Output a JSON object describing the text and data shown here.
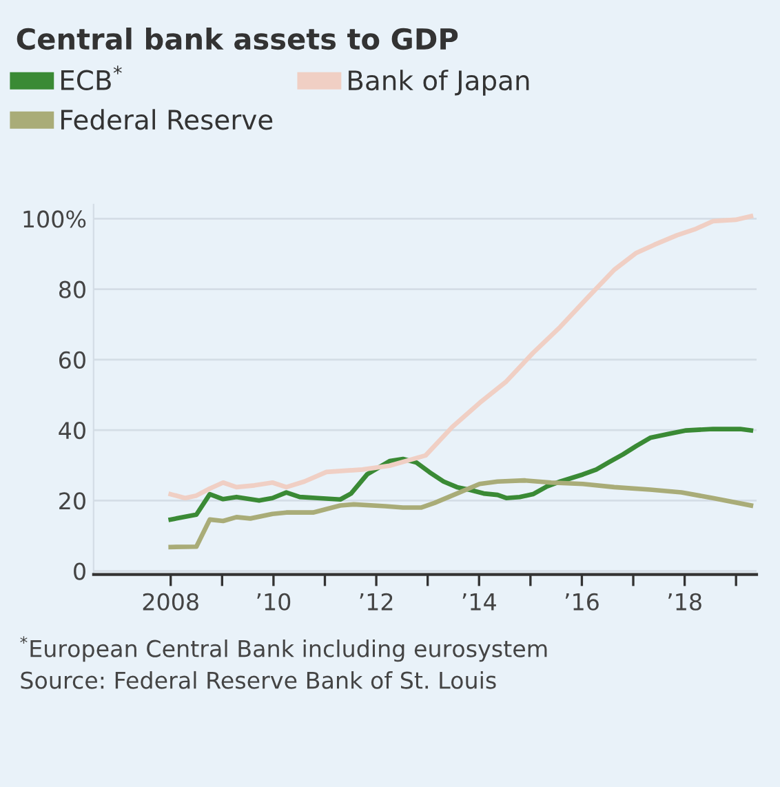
{
  "chart_data": {
    "type": "line",
    "title": "Central bank assets to GDP",
    "legend": "top left",
    "grid": "y",
    "marker": "none",
    "line_style": "solid",
    "series": [
      {
        "name": "ECB$^{*}$",
        "color": "#3a8a35",
        "x": [
          2008.0,
          2008.5,
          2008.76,
          2009.02,
          2009.28,
          2009.72,
          2009.98,
          2010.25,
          2010.51,
          2010.86,
          2011.3,
          2011.51,
          2011.82,
          2012.26,
          2012.52,
          2012.78,
          2013.04,
          2013.31,
          2013.57,
          2013.83,
          2014.09,
          2014.36,
          2014.53,
          2014.79,
          2015.05,
          2015.32,
          2015.58,
          2016.02,
          2016.28,
          2016.54,
          2016.8,
          2017.06,
          2017.33,
          2017.68,
          2018.03,
          2018.55,
          2019.08,
          2019.29
        ],
        "values": [
          14.6,
          16,
          21.8,
          20.4,
          21,
          20,
          20.7,
          22.3,
          21,
          20.7,
          20.3,
          22,
          27.4,
          31.2,
          31.8,
          30.8,
          28,
          25.4,
          23.8,
          23,
          22,
          21.6,
          20.7,
          21,
          21.8,
          24,
          25.4,
          27.4,
          28.8,
          31,
          33.1,
          35.5,
          37.8,
          38.9,
          39.9,
          40.3,
          40.3,
          39.9
        ]
      },
      {
        "name": "Federal Reserve",
        "color": "#a9ac78",
        "x": [
          2008.0,
          2008.5,
          2008.76,
          2009.02,
          2009.28,
          2009.55,
          2009.98,
          2010.25,
          2010.77,
          2011.3,
          2011.56,
          2012.17,
          2012.52,
          2012.87,
          2013.13,
          2013.57,
          2014.01,
          2014.36,
          2014.88,
          2015.4,
          2016.02,
          2016.63,
          2017.33,
          2017.94,
          2018.55,
          2019.29
        ],
        "values": [
          6.8,
          6.9,
          14.6,
          14.2,
          15.3,
          14.9,
          16.2,
          16.6,
          16.6,
          18.6,
          18.9,
          18.4,
          18,
          18,
          19.3,
          22,
          24.7,
          25.4,
          25.7,
          25.1,
          24.7,
          23.8,
          23.1,
          22.3,
          20.7,
          18.6
        ]
      },
      {
        "name": "Bank of Japan",
        "color": "#f0cfc4",
        "x": [
          2008.0,
          2008.28,
          2008.5,
          2008.76,
          2009.02,
          2009.28,
          2009.63,
          2009.98,
          2010.25,
          2010.6,
          2011.03,
          2011.73,
          2012.26,
          2012.96,
          2013.48,
          2014.01,
          2014.53,
          2015.05,
          2015.58,
          2016.1,
          2016.63,
          2017.06,
          2017.41,
          2017.85,
          2018.2,
          2018.55,
          2018.99,
          2019.29
        ],
        "values": [
          21.8,
          20.7,
          21.4,
          23.4,
          25.1,
          23.8,
          24.3,
          25.1,
          23.8,
          25.4,
          28.1,
          28.8,
          29.9,
          32.8,
          40.9,
          47.7,
          53.8,
          61.9,
          69.3,
          77.4,
          85.5,
          90.3,
          92.6,
          95.3,
          97,
          99.3,
          99.7,
          100.7
        ]
      }
    ],
    "xlim": [
      2006.5,
      2019.4
    ],
    "xticks": [
      {
        "value": 2008,
        "label": "2008"
      },
      {
        "value": 2009,
        "label": null
      },
      {
        "value": 2010,
        "label": "’10"
      },
      {
        "value": 2011,
        "label": null
      },
      {
        "value": 2012,
        "label": "’12"
      },
      {
        "value": 2013,
        "label": null
      },
      {
        "value": 2014,
        "label": "’14"
      },
      {
        "value": 2015,
        "label": null
      },
      {
        "value": 2016,
        "label": "’16"
      },
      {
        "value": 2017,
        "label": null
      },
      {
        "value": 2018,
        "label": "’18"
      },
      {
        "value": 2019,
        "label": null
      }
    ],
    "ylim": [
      -1,
      104
    ],
    "yticks": [
      0,
      20,
      40,
      60,
      80,
      {
        "value": 100,
        "label": "100%"
      }
    ],
    "annotations": [
      "$^{*}$European Central Bank including eurosystem",
      "Source: Federal Reserve Bank of St. Louis"
    ]
  }
}
